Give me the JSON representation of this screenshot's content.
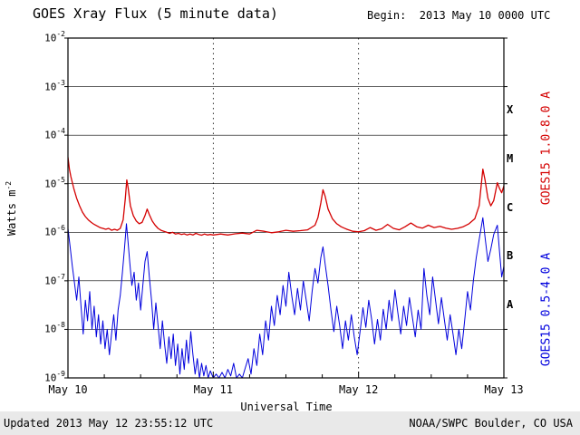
{
  "header": {
    "begin": "Begin:  2013 May 10 0000 UTC"
  },
  "footer": {
    "updated": "Updated 2013 May 12 23:55:12 UTC",
    "source": "NOAA/SWPC Boulder, CO USA"
  },
  "axes": {
    "y_label_base": "Watts m",
    "y_label_exp": "-2"
  },
  "flare_classes": [
    "X",
    "M",
    "C",
    "B",
    "A"
  ],
  "colors": {
    "long": "#d40000",
    "short": "#0000dd",
    "grid": "#000000",
    "footer_band": "#e9e9e9"
  },
  "chart_data": {
    "type": "line",
    "title": "GOES Xray Flux (5 minute data)",
    "xlabel": "Universal Time",
    "ylabel": "Watts m^-2",
    "x_unit": "days since 2013 May 10 0000 UTC",
    "xlim": [
      0,
      3
    ],
    "yscale": "log",
    "ylim": [
      1e-09,
      0.01
    ],
    "grid": {
      "horizontal": "solid-per-decade",
      "vertical": "dotted-at-day-boundaries"
    },
    "xticks": [
      {
        "x": 0,
        "label": "May 10"
      },
      {
        "x": 1,
        "label": "May 11"
      },
      {
        "x": 2,
        "label": "May 12"
      },
      {
        "x": 3,
        "label": "May 13"
      }
    ],
    "ytick_exponents": [
      -2,
      -3,
      -4,
      -5,
      -6,
      -7,
      -8,
      -9
    ],
    "series": [
      {
        "name": "GOES15 1.0-8.0 A",
        "color": "#d40000",
        "points": [
          [
            0.0,
            3.5e-05
          ],
          [
            0.01,
            2e-05
          ],
          [
            0.02,
            1.4e-05
          ],
          [
            0.04,
            8e-06
          ],
          [
            0.06,
            5e-06
          ],
          [
            0.08,
            3.5e-06
          ],
          [
            0.1,
            2.6e-06
          ],
          [
            0.12,
            2.1e-06
          ],
          [
            0.14,
            1.8e-06
          ],
          [
            0.16,
            1.6e-06
          ],
          [
            0.18,
            1.45e-06
          ],
          [
            0.2,
            1.35e-06
          ],
          [
            0.22,
            1.25e-06
          ],
          [
            0.24,
            1.2e-06
          ],
          [
            0.26,
            1.15e-06
          ],
          [
            0.28,
            1.2e-06
          ],
          [
            0.3,
            1.1e-06
          ],
          [
            0.32,
            1.15e-06
          ],
          [
            0.34,
            1.1e-06
          ],
          [
            0.36,
            1.2e-06
          ],
          [
            0.38,
            1.8e-06
          ],
          [
            0.395,
            5e-06
          ],
          [
            0.405,
            1.2e-05
          ],
          [
            0.415,
            8e-06
          ],
          [
            0.43,
            3.5e-06
          ],
          [
            0.45,
            2.2e-06
          ],
          [
            0.47,
            1.7e-06
          ],
          [
            0.49,
            1.5e-06
          ],
          [
            0.51,
            1.6e-06
          ],
          [
            0.53,
            2.2e-06
          ],
          [
            0.545,
            3e-06
          ],
          [
            0.56,
            2.3e-06
          ],
          [
            0.58,
            1.7e-06
          ],
          [
            0.6,
            1.4e-06
          ],
          [
            0.62,
            1.2e-06
          ],
          [
            0.64,
            1.1e-06
          ],
          [
            0.66,
            1.05e-06
          ],
          [
            0.68,
            1e-06
          ],
          [
            0.7,
            9.5e-07
          ],
          [
            0.72,
            1e-06
          ],
          [
            0.74,
            9.2e-07
          ],
          [
            0.76,
            9.5e-07
          ],
          [
            0.78,
            9e-07
          ],
          [
            0.8,
            9.3e-07
          ],
          [
            0.82,
            8.8e-07
          ],
          [
            0.84,
            9.2e-07
          ],
          [
            0.86,
            8.8e-07
          ],
          [
            0.88,
            9.5e-07
          ],
          [
            0.9,
            9e-07
          ],
          [
            0.92,
            8.7e-07
          ],
          [
            0.94,
            9.2e-07
          ],
          [
            0.96,
            8.8e-07
          ],
          [
            0.98,
            9e-07
          ],
          [
            1.0,
            8.8e-07
          ],
          [
            1.05,
            9.2e-07
          ],
          [
            1.1,
            8.8e-07
          ],
          [
            1.15,
            9.3e-07
          ],
          [
            1.2,
            9.6e-07
          ],
          [
            1.25,
            9.2e-07
          ],
          [
            1.3,
            1.1e-06
          ],
          [
            1.35,
            1.05e-06
          ],
          [
            1.4,
            9.8e-07
          ],
          [
            1.45,
            1.02e-06
          ],
          [
            1.5,
            1.1e-06
          ],
          [
            1.55,
            1.05e-06
          ],
          [
            1.6,
            1.08e-06
          ],
          [
            1.65,
            1.12e-06
          ],
          [
            1.7,
            1.4e-06
          ],
          [
            1.72,
            2e-06
          ],
          [
            1.74,
            4e-06
          ],
          [
            1.755,
            7.5e-06
          ],
          [
            1.77,
            5.5e-06
          ],
          [
            1.79,
            3e-06
          ],
          [
            1.82,
            1.9e-06
          ],
          [
            1.85,
            1.5e-06
          ],
          [
            1.88,
            1.3e-06
          ],
          [
            1.92,
            1.15e-06
          ],
          [
            1.96,
            1.05e-06
          ],
          [
            2.0,
            1.02e-06
          ],
          [
            2.04,
            1.08e-06
          ],
          [
            2.08,
            1.25e-06
          ],
          [
            2.12,
            1.1e-06
          ],
          [
            2.16,
            1.18e-06
          ],
          [
            2.2,
            1.45e-06
          ],
          [
            2.24,
            1.2e-06
          ],
          [
            2.28,
            1.12e-06
          ],
          [
            2.32,
            1.3e-06
          ],
          [
            2.36,
            1.55e-06
          ],
          [
            2.4,
            1.3e-06
          ],
          [
            2.44,
            1.22e-06
          ],
          [
            2.48,
            1.4e-06
          ],
          [
            2.52,
            1.25e-06
          ],
          [
            2.56,
            1.32e-06
          ],
          [
            2.6,
            1.22e-06
          ],
          [
            2.64,
            1.15e-06
          ],
          [
            2.68,
            1.2e-06
          ],
          [
            2.72,
            1.3e-06
          ],
          [
            2.76,
            1.5e-06
          ],
          [
            2.8,
            1.9e-06
          ],
          [
            2.83,
            3.5e-06
          ],
          [
            2.855,
            2e-05
          ],
          [
            2.87,
            1.2e-05
          ],
          [
            2.89,
            5e-06
          ],
          [
            2.91,
            3.5e-06
          ],
          [
            2.93,
            4.5e-06
          ],
          [
            2.955,
            1.05e-05
          ],
          [
            2.97,
            8e-06
          ],
          [
            2.985,
            6.5e-06
          ],
          [
            3.0,
            9e-06
          ]
        ]
      },
      {
        "name": "GOES15 0.5-4.0 A",
        "color": "#0000dd",
        "points": [
          [
            0.0,
            1.2e-06
          ],
          [
            0.015,
            5e-07
          ],
          [
            0.03,
            2e-07
          ],
          [
            0.045,
            9e-08
          ],
          [
            0.06,
            4e-08
          ],
          [
            0.075,
            1.2e-07
          ],
          [
            0.09,
            3e-08
          ],
          [
            0.105,
            8e-09
          ],
          [
            0.12,
            4e-08
          ],
          [
            0.135,
            1.5e-08
          ],
          [
            0.15,
            6e-08
          ],
          [
            0.165,
            1e-08
          ],
          [
            0.18,
            3e-08
          ],
          [
            0.195,
            7e-09
          ],
          [
            0.21,
            2e-08
          ],
          [
            0.225,
            5e-09
          ],
          [
            0.24,
            1.5e-08
          ],
          [
            0.255,
            4e-09
          ],
          [
            0.27,
            1e-08
          ],
          [
            0.285,
            3e-09
          ],
          [
            0.3,
            8e-09
          ],
          [
            0.315,
            2e-08
          ],
          [
            0.33,
            6e-09
          ],
          [
            0.345,
            2.5e-08
          ],
          [
            0.36,
            5e-08
          ],
          [
            0.375,
            1.5e-07
          ],
          [
            0.39,
            5e-07
          ],
          [
            0.402,
            1.5e-06
          ],
          [
            0.412,
            7e-07
          ],
          [
            0.425,
            2.5e-07
          ],
          [
            0.44,
            8e-08
          ],
          [
            0.455,
            1.5e-07
          ],
          [
            0.47,
            4e-08
          ],
          [
            0.485,
            9e-08
          ],
          [
            0.5,
            2.5e-08
          ],
          [
            0.515,
            8e-08
          ],
          [
            0.53,
            2.5e-07
          ],
          [
            0.545,
            4e-07
          ],
          [
            0.56,
            1.2e-07
          ],
          [
            0.575,
            4e-08
          ],
          [
            0.59,
            1e-08
          ],
          [
            0.605,
            3.5e-08
          ],
          [
            0.62,
            1.2e-08
          ],
          [
            0.635,
            4e-09
          ],
          [
            0.65,
            1.5e-08
          ],
          [
            0.665,
            5e-09
          ],
          [
            0.68,
            2e-09
          ],
          [
            0.695,
            7e-09
          ],
          [
            0.71,
            2.5e-09
          ],
          [
            0.725,
            8e-09
          ],
          [
            0.74,
            1.8e-09
          ],
          [
            0.755,
            5e-09
          ],
          [
            0.77,
            1.2e-09
          ],
          [
            0.785,
            4e-09
          ],
          [
            0.8,
            1.5e-09
          ],
          [
            0.815,
            6e-09
          ],
          [
            0.83,
            2e-09
          ],
          [
            0.845,
            9e-09
          ],
          [
            0.86,
            3e-09
          ],
          [
            0.875,
            1.2e-09
          ],
          [
            0.89,
            2.5e-09
          ],
          [
            0.905,
            1e-09
          ],
          [
            0.92,
            2e-09
          ],
          [
            0.935,
            1.1e-09
          ],
          [
            0.95,
            1.8e-09
          ],
          [
            0.965,
            1e-09
          ],
          [
            0.98,
            1.4e-09
          ],
          [
            1.0,
            1e-09
          ],
          [
            1.02,
            1.2e-09
          ],
          [
            1.04,
            1e-09
          ],
          [
            1.06,
            1.3e-09
          ],
          [
            1.08,
            1e-09
          ],
          [
            1.1,
            1.5e-09
          ],
          [
            1.12,
            1.1e-09
          ],
          [
            1.14,
            2e-09
          ],
          [
            1.16,
            1e-09
          ],
          [
            1.18,
            1.2e-09
          ],
          [
            1.2,
            1e-09
          ],
          [
            1.22,
            1.6e-09
          ],
          [
            1.24,
            2.5e-09
          ],
          [
            1.26,
            1.2e-09
          ],
          [
            1.28,
            4e-09
          ],
          [
            1.3,
            1.8e-09
          ],
          [
            1.32,
            8e-09
          ],
          [
            1.34,
            3e-09
          ],
          [
            1.36,
            1.5e-08
          ],
          [
            1.38,
            6e-09
          ],
          [
            1.4,
            3e-08
          ],
          [
            1.42,
            1.2e-08
          ],
          [
            1.44,
            5e-08
          ],
          [
            1.46,
            2e-08
          ],
          [
            1.48,
            8e-08
          ],
          [
            1.5,
            3e-08
          ],
          [
            1.52,
            1.5e-07
          ],
          [
            1.54,
            5e-08
          ],
          [
            1.56,
            2e-08
          ],
          [
            1.58,
            7e-08
          ],
          [
            1.6,
            2.5e-08
          ],
          [
            1.62,
            1e-07
          ],
          [
            1.64,
            4e-08
          ],
          [
            1.66,
            1.5e-08
          ],
          [
            1.68,
            6e-08
          ],
          [
            1.7,
            1.8e-07
          ],
          [
            1.72,
            9e-08
          ],
          [
            1.74,
            3e-07
          ],
          [
            1.755,
            5e-07
          ],
          [
            1.77,
            2.2e-07
          ],
          [
            1.79,
            8e-08
          ],
          [
            1.81,
            2.5e-08
          ],
          [
            1.83,
            9e-09
          ],
          [
            1.85,
            3e-08
          ],
          [
            1.87,
            1.2e-08
          ],
          [
            1.89,
            4e-09
          ],
          [
            1.91,
            1.5e-08
          ],
          [
            1.93,
            6e-09
          ],
          [
            1.95,
            2e-08
          ],
          [
            1.97,
            7e-09
          ],
          [
            1.99,
            3e-09
          ],
          [
            2.01,
            9e-09
          ],
          [
            2.03,
            2.8e-08
          ],
          [
            2.05,
            1.1e-08
          ],
          [
            2.07,
            4e-08
          ],
          [
            2.09,
            1.6e-08
          ],
          [
            2.11,
            5e-09
          ],
          [
            2.13,
            1.6e-08
          ],
          [
            2.15,
            6e-09
          ],
          [
            2.17,
            2.6e-08
          ],
          [
            2.19,
            1e-08
          ],
          [
            2.21,
            4e-08
          ],
          [
            2.23,
            1.5e-08
          ],
          [
            2.25,
            6.5e-08
          ],
          [
            2.27,
            2.2e-08
          ],
          [
            2.29,
            8e-09
          ],
          [
            2.31,
            3e-08
          ],
          [
            2.33,
            1.2e-08
          ],
          [
            2.35,
            4.5e-08
          ],
          [
            2.37,
            1.8e-08
          ],
          [
            2.39,
            7e-09
          ],
          [
            2.41,
            2.5e-08
          ],
          [
            2.43,
            1e-08
          ],
          [
            2.45,
            1.8e-07
          ],
          [
            2.47,
            5e-08
          ],
          [
            2.49,
            2e-08
          ],
          [
            2.51,
            1.2e-07
          ],
          [
            2.53,
            4e-08
          ],
          [
            2.55,
            1.3e-08
          ],
          [
            2.57,
            4.5e-08
          ],
          [
            2.59,
            1.6e-08
          ],
          [
            2.61,
            6e-09
          ],
          [
            2.63,
            2e-08
          ],
          [
            2.65,
            8e-09
          ],
          [
            2.67,
            3e-09
          ],
          [
            2.69,
            1e-08
          ],
          [
            2.71,
            4e-09
          ],
          [
            2.73,
            1.5e-08
          ],
          [
            2.75,
            6e-08
          ],
          [
            2.77,
            2.5e-08
          ],
          [
            2.79,
            1e-07
          ],
          [
            2.81,
            3e-07
          ],
          [
            2.83,
            7e-07
          ],
          [
            2.855,
            2e-06
          ],
          [
            2.87,
            8e-07
          ],
          [
            2.89,
            2.5e-07
          ],
          [
            2.91,
            4.5e-07
          ],
          [
            2.93,
            9e-07
          ],
          [
            2.955,
            1.4e-06
          ],
          [
            2.97,
            4e-07
          ],
          [
            2.985,
            1.2e-07
          ],
          [
            3.0,
            2e-07
          ]
        ]
      }
    ]
  }
}
